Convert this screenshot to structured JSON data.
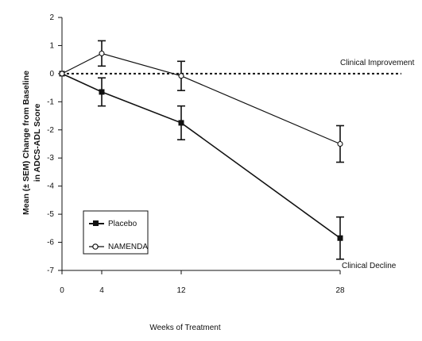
{
  "chart_data": {
    "type": "line",
    "title": "",
    "xlabel": "Weeks of Treatment",
    "ylabel_lines": [
      "Mean (± SEM) Change from Baseline",
      "in ADCS-ADL Score"
    ],
    "x": [
      0,
      4,
      12,
      28
    ],
    "x_ticks": [
      "0",
      "4",
      "12",
      "28"
    ],
    "y_ticks": [
      "2",
      "1",
      "0",
      "-1",
      "-2",
      "-3",
      "-4",
      "-5",
      "-6",
      "-7"
    ],
    "ylim": [
      -7,
      2
    ],
    "xlim": [
      0,
      28
    ],
    "grid": false,
    "legend_position": "lower-left",
    "series": [
      {
        "name": "Placebo",
        "marker": "filled-square",
        "values": [
          0,
          -0.65,
          -1.75,
          -5.85
        ],
        "sem": [
          0,
          0.5,
          0.6,
          0.75
        ]
      },
      {
        "name": "NAMENDA",
        "marker": "open-circle",
        "values": [
          0,
          0.72,
          -0.08,
          -2.5
        ],
        "sem": [
          0,
          0.45,
          0.52,
          0.65
        ]
      }
    ],
    "reference_line": {
      "y": 0,
      "style": "dotted"
    },
    "annotations": [
      {
        "text": "Clinical Improvement"
      },
      {
        "text": "Clinical Decline"
      }
    ],
    "colors": {
      "line": "#111111",
      "background": "#ffffff"
    }
  }
}
